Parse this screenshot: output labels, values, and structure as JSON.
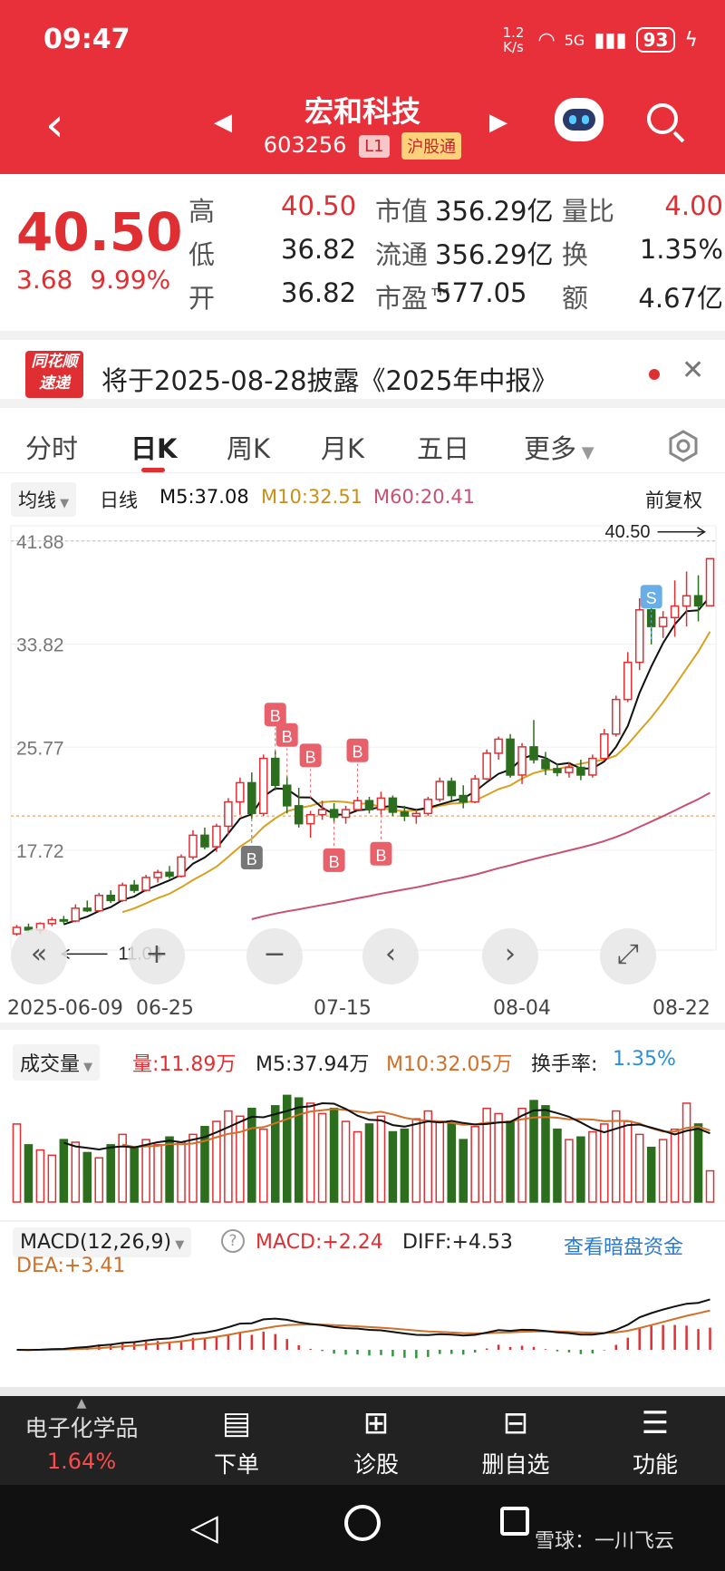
{
  "status_bar": {
    "time": "09:47",
    "network_speed": "1.2 K/s",
    "signal": "5G",
    "battery": "93"
  },
  "nav": {
    "title": "宏和科技",
    "code": "603256",
    "tag_level": "L1",
    "tag_connect": "沪股通"
  },
  "quote": {
    "price": "40.50",
    "change": "3.68",
    "change_pct": "9.99%",
    "rows": [
      {
        "l1": "高",
        "v1": "40.50",
        "l2": "市值",
        "v2": "356.29亿",
        "l3": "量比",
        "v3": "4.00"
      },
      {
        "l1": "低",
        "v1": "36.82",
        "l2": "流通",
        "v2": "356.29亿",
        "l3": "换",
        "v3": "1.35%"
      },
      {
        "l1": "开",
        "v1": "36.82",
        "l2": "市盈™",
        "v2": "577.05",
        "l3": "额",
        "v3": "4.67亿"
      }
    ]
  },
  "notice": {
    "logo_line1": "同花顺",
    "logo_line2": "速递",
    "text": "将于2025-08-28披露《2025年中报》"
  },
  "tabs": [
    "分时",
    "日K",
    "周K",
    "月K",
    "五日",
    "更多"
  ],
  "ma_bar": {
    "selector": "均线",
    "period": "日线",
    "m5": "M5:37.08",
    "m10": "M10:32.51",
    "m60": "M60:20.41",
    "adjust": "前复权"
  },
  "kline": {
    "y_ticks": [
      "41.88",
      "33.82",
      "25.77",
      "17.72"
    ],
    "y_values": [
      41.88,
      33.82,
      25.77,
      17.72
    ],
    "high_label": "40.50",
    "low_label": "11.04",
    "x_ticks": [
      "2025-06-09",
      "06-25",
      "07-15",
      "08-04",
      "08-22"
    ],
    "marker_b": "B",
    "marker_s": "S"
  },
  "chart_data": {
    "type": "candlestick",
    "y_ticks": [
      41.88,
      33.82,
      25.77,
      17.72
    ],
    "ylim": [
      10.5,
      42.5
    ],
    "candles": [
      {
        "o": 11.2,
        "h": 11.9,
        "l": 11.04,
        "c": 11.7
      },
      {
        "o": 11.7,
        "h": 12.0,
        "l": 11.3,
        "c": 11.5
      },
      {
        "o": 11.5,
        "h": 12.1,
        "l": 11.2,
        "c": 12.0
      },
      {
        "o": 12.0,
        "h": 12.5,
        "l": 11.8,
        "c": 12.3
      },
      {
        "o": 12.3,
        "h": 12.6,
        "l": 12.0,
        "c": 12.2
      },
      {
        "o": 12.2,
        "h": 13.5,
        "l": 12.1,
        "c": 13.2
      },
      {
        "o": 13.2,
        "h": 13.8,
        "l": 12.9,
        "c": 13.0
      },
      {
        "o": 13.0,
        "h": 14.4,
        "l": 12.9,
        "c": 14.2
      },
      {
        "o": 14.2,
        "h": 14.6,
        "l": 13.6,
        "c": 13.8
      },
      {
        "o": 13.8,
        "h": 15.2,
        "l": 13.7,
        "c": 15.0
      },
      {
        "o": 15.0,
        "h": 15.4,
        "l": 14.4,
        "c": 14.6
      },
      {
        "o": 14.6,
        "h": 15.8,
        "l": 14.5,
        "c": 15.6
      },
      {
        "o": 15.6,
        "h": 16.2,
        "l": 15.2,
        "c": 16.0
      },
      {
        "o": 16.0,
        "h": 16.5,
        "l": 15.5,
        "c": 15.7
      },
      {
        "o": 15.7,
        "h": 17.4,
        "l": 15.6,
        "c": 17.2
      },
      {
        "o": 17.2,
        "h": 19.3,
        "l": 17.0,
        "c": 18.9
      },
      {
        "o": 18.9,
        "h": 19.5,
        "l": 17.8,
        "c": 18.0
      },
      {
        "o": 18.0,
        "h": 19.8,
        "l": 17.6,
        "c": 19.6
      },
      {
        "o": 19.6,
        "h": 21.8,
        "l": 18.9,
        "c": 21.5
      },
      {
        "o": 21.5,
        "h": 23.4,
        "l": 20.5,
        "c": 23.0
      },
      {
        "o": 23.0,
        "h": 23.8,
        "l": 20.2,
        "c": 20.6
      },
      {
        "o": 20.6,
        "h": 25.2,
        "l": 20.4,
        "c": 24.9
      },
      {
        "o": 24.9,
        "h": 25.5,
        "l": 22.4,
        "c": 22.8
      },
      {
        "o": 22.8,
        "h": 23.5,
        "l": 20.6,
        "c": 21.2
      },
      {
        "o": 21.2,
        "h": 22.6,
        "l": 19.5,
        "c": 19.8
      },
      {
        "o": 19.8,
        "h": 20.8,
        "l": 18.7,
        "c": 20.5
      },
      {
        "o": 20.5,
        "h": 21.6,
        "l": 20.1,
        "c": 20.9
      },
      {
        "o": 20.9,
        "h": 21.4,
        "l": 19.9,
        "c": 20.3
      },
      {
        "o": 20.3,
        "h": 21.2,
        "l": 19.8,
        "c": 20.9
      },
      {
        "o": 20.9,
        "h": 21.9,
        "l": 20.8,
        "c": 21.6
      },
      {
        "o": 21.6,
        "h": 21.9,
        "l": 20.6,
        "c": 20.9
      },
      {
        "o": 20.9,
        "h": 22.3,
        "l": 20.5,
        "c": 21.8
      },
      {
        "o": 21.8,
        "h": 22.0,
        "l": 20.4,
        "c": 20.7
      },
      {
        "o": 20.7,
        "h": 21.2,
        "l": 20.0,
        "c": 20.4
      },
      {
        "o": 20.4,
        "h": 20.9,
        "l": 19.8,
        "c": 20.6
      },
      {
        "o": 20.6,
        "h": 21.9,
        "l": 20.4,
        "c": 21.7
      },
      {
        "o": 21.7,
        "h": 23.4,
        "l": 21.5,
        "c": 23.1
      },
      {
        "o": 23.1,
        "h": 23.4,
        "l": 21.6,
        "c": 22.0
      },
      {
        "o": 22.0,
        "h": 22.8,
        "l": 21.0,
        "c": 21.5
      },
      {
        "o": 21.5,
        "h": 23.6,
        "l": 21.4,
        "c": 23.3
      },
      {
        "o": 23.3,
        "h": 25.6,
        "l": 23.2,
        "c": 25.3
      },
      {
        "o": 25.3,
        "h": 26.6,
        "l": 24.8,
        "c": 26.4
      },
      {
        "o": 26.4,
        "h": 26.8,
        "l": 23.4,
        "c": 23.6
      },
      {
        "o": 23.6,
        "h": 26.1,
        "l": 22.9,
        "c": 25.8
      },
      {
        "o": 25.8,
        "h": 27.9,
        "l": 24.5,
        "c": 24.8
      },
      {
        "o": 24.8,
        "h": 25.4,
        "l": 23.6,
        "c": 24.1
      },
      {
        "o": 24.1,
        "h": 24.5,
        "l": 23.5,
        "c": 23.8
      },
      {
        "o": 23.8,
        "h": 24.6,
        "l": 23.4,
        "c": 24.2
      },
      {
        "o": 24.2,
        "h": 24.8,
        "l": 23.2,
        "c": 23.6
      },
      {
        "o": 23.6,
        "h": 25.2,
        "l": 23.4,
        "c": 24.9
      },
      {
        "o": 24.9,
        "h": 27.2,
        "l": 24.7,
        "c": 26.8
      },
      {
        "o": 26.8,
        "h": 29.8,
        "l": 26.6,
        "c": 29.5
      },
      {
        "o": 29.5,
        "h": 33.2,
        "l": 29.3,
        "c": 32.4
      },
      {
        "o": 32.4,
        "h": 37.4,
        "l": 31.8,
        "c": 36.5
      },
      {
        "o": 36.5,
        "h": 37.0,
        "l": 33.8,
        "c": 35.2
      },
      {
        "o": 35.2,
        "h": 36.4,
        "l": 34.3,
        "c": 35.9
      },
      {
        "o": 35.9,
        "h": 38.8,
        "l": 34.4,
        "c": 36.8
      },
      {
        "o": 36.8,
        "h": 39.5,
        "l": 35.2,
        "c": 37.6
      },
      {
        "o": 37.6,
        "h": 39.2,
        "l": 35.6,
        "c": 36.82
      },
      {
        "o": 36.82,
        "h": 40.5,
        "l": 36.82,
        "c": 40.5
      }
    ],
    "volume_series": {
      "name": "量",
      "latest": "11.89万",
      "m5": "M5:37.94万",
      "m10": "M10:32.05万",
      "turnover": "1.35%"
    },
    "volume": [
      30,
      22,
      20,
      18,
      24,
      23,
      19,
      17,
      22,
      26,
      21,
      24,
      22,
      25,
      23,
      26,
      29,
      31,
      35,
      33,
      36,
      28,
      37,
      41,
      40,
      38,
      34,
      36,
      31,
      27,
      30,
      33,
      27,
      28,
      32,
      35,
      31,
      30,
      24,
      29,
      36,
      34,
      31,
      36,
      39,
      37,
      28,
      24,
      25,
      27,
      30,
      35,
      31,
      26,
      21,
      24,
      28,
      38,
      30,
      12
    ],
    "macd_params": "MACD(12,26,9)",
    "macd": "MACD:+2.24",
    "diff": "DIFF:+4.53",
    "dea": "DEA:+3.41"
  },
  "volume_bar": {
    "selector": "成交量",
    "vol": "量:11.89万",
    "m5": "M5:37.94万",
    "m10": "M10:32.05万",
    "turnover_label": "换手率:",
    "turnover": "1.35%"
  },
  "macd_bar": {
    "selector": "MACD(12,26,9)",
    "macd": "MACD:+2.24",
    "diff": "DIFF:+4.53",
    "link": "查看暗盘资金",
    "dea": "DEA:+3.41"
  },
  "bottom_nav": {
    "sector": "电子化学品",
    "sector_pct": "1.64%",
    "items": [
      "下单",
      "诊股",
      "删自选",
      "功能"
    ]
  },
  "watermark": "雪球：一川飞云",
  "colors": {
    "brand": "#e8303b",
    "up": "#e02f33",
    "down": "#2c6e1e",
    "ma5": "#111111",
    "ma10": "#d8a020",
    "ma60": "#c85070"
  }
}
